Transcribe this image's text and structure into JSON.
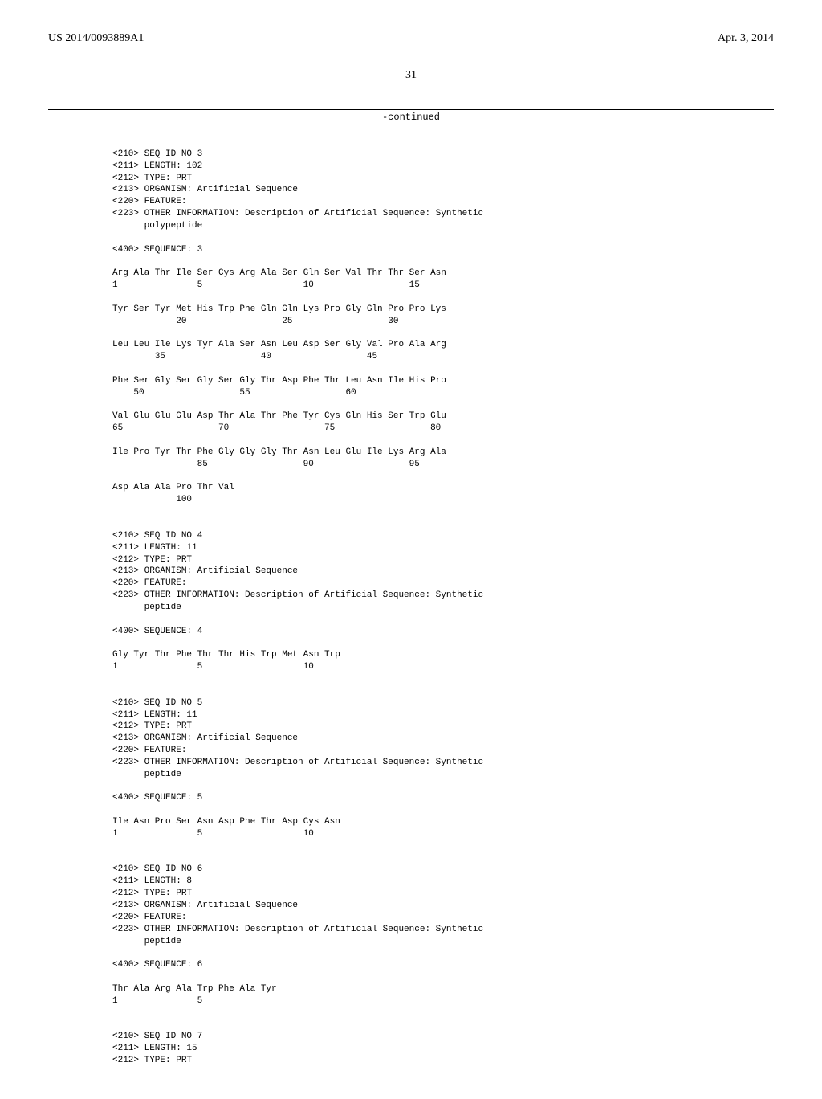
{
  "header": {
    "left": "US 2014/0093889A1",
    "right": "Apr. 3, 2014"
  },
  "page_number": "31",
  "continued": "-continued",
  "seq3": {
    "l1": "<210> SEQ ID NO 3",
    "l2": "<211> LENGTH: 102",
    "l3": "<212> TYPE: PRT",
    "l4": "<213> ORGANISM: Artificial Sequence",
    "l5": "<220> FEATURE:",
    "l6": "<223> OTHER INFORMATION: Description of Artificial Sequence: Synthetic",
    "l7": "      polypeptide",
    "l8": "",
    "l9": "<400> SEQUENCE: 3",
    "l10": "",
    "r1a": "Arg Ala Thr Ile Ser Cys Arg Ala Ser Gln Ser Val Thr Thr Ser Asn",
    "r1b": "1               5                   10                  15",
    "r2a": "",
    "r2b": "Tyr Ser Tyr Met His Trp Phe Gln Gln Lys Pro Gly Gln Pro Pro Lys",
    "r2c": "            20                  25                  30",
    "r3a": "",
    "r3b": "Leu Leu Ile Lys Tyr Ala Ser Asn Leu Asp Ser Gly Val Pro Ala Arg",
    "r3c": "        35                  40                  45",
    "r4a": "",
    "r4b": "Phe Ser Gly Ser Gly Ser Gly Thr Asp Phe Thr Leu Asn Ile His Pro",
    "r4c": "    50                  55                  60",
    "r5a": "",
    "r5b": "Val Glu Glu Glu Asp Thr Ala Thr Phe Tyr Cys Gln His Ser Trp Glu",
    "r5c": "65                  70                  75                  80",
    "r6a": "",
    "r6b": "Ile Pro Tyr Thr Phe Gly Gly Gly Thr Asn Leu Glu Ile Lys Arg Ala",
    "r6c": "                85                  90                  95",
    "r7a": "",
    "r7b": "Asp Ala Ala Pro Thr Val",
    "r7c": "            100"
  },
  "seq4": {
    "l1": "<210> SEQ ID NO 4",
    "l2": "<211> LENGTH: 11",
    "l3": "<212> TYPE: PRT",
    "l4": "<213> ORGANISM: Artificial Sequence",
    "l5": "<220> FEATURE:",
    "l6": "<223> OTHER INFORMATION: Description of Artificial Sequence: Synthetic",
    "l7": "      peptide",
    "l8": "",
    "l9": "<400> SEQUENCE: 4",
    "l10": "",
    "r1a": "Gly Tyr Thr Phe Thr Thr His Trp Met Asn Trp",
    "r1b": "1               5                   10"
  },
  "seq5": {
    "l1": "<210> SEQ ID NO 5",
    "l2": "<211> LENGTH: 11",
    "l3": "<212> TYPE: PRT",
    "l4": "<213> ORGANISM: Artificial Sequence",
    "l5": "<220> FEATURE:",
    "l6": "<223> OTHER INFORMATION: Description of Artificial Sequence: Synthetic",
    "l7": "      peptide",
    "l8": "",
    "l9": "<400> SEQUENCE: 5",
    "l10": "",
    "r1a": "Ile Asn Pro Ser Asn Asp Phe Thr Asp Cys Asn",
    "r1b": "1               5                   10"
  },
  "seq6": {
    "l1": "<210> SEQ ID NO 6",
    "l2": "<211> LENGTH: 8",
    "l3": "<212> TYPE: PRT",
    "l4": "<213> ORGANISM: Artificial Sequence",
    "l5": "<220> FEATURE:",
    "l6": "<223> OTHER INFORMATION: Description of Artificial Sequence: Synthetic",
    "l7": "      peptide",
    "l8": "",
    "l9": "<400> SEQUENCE: 6",
    "l10": "",
    "r1a": "Thr Ala Arg Ala Trp Phe Ala Tyr",
    "r1b": "1               5"
  },
  "seq7": {
    "l1": "<210> SEQ ID NO 7",
    "l2": "<211> LENGTH: 15",
    "l3": "<212> TYPE: PRT"
  }
}
